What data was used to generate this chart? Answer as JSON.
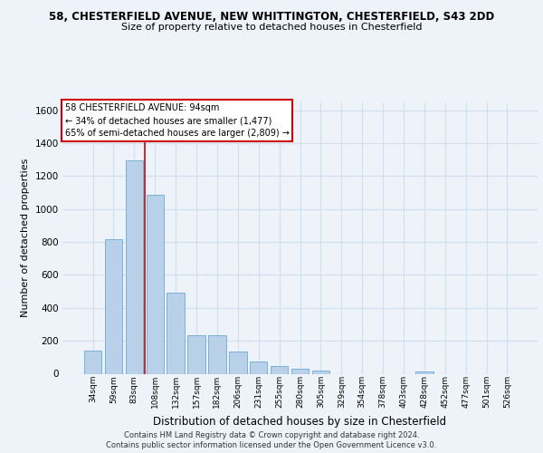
{
  "title_line1": "58, CHESTERFIELD AVENUE, NEW WHITTINGTON, CHESTERFIELD, S43 2DD",
  "title_line2": "Size of property relative to detached houses in Chesterfield",
  "xlabel": "Distribution of detached houses by size in Chesterfield",
  "ylabel": "Number of detached properties",
  "categories": [
    "34sqm",
    "59sqm",
    "83sqm",
    "108sqm",
    "132sqm",
    "157sqm",
    "182sqm",
    "206sqm",
    "231sqm",
    "255sqm",
    "280sqm",
    "305sqm",
    "329sqm",
    "354sqm",
    "378sqm",
    "403sqm",
    "428sqm",
    "452sqm",
    "477sqm",
    "501sqm",
    "526sqm"
  ],
  "values": [
    140,
    815,
    1295,
    1085,
    490,
    235,
    235,
    135,
    75,
    45,
    28,
    18,
    0,
    0,
    0,
    0,
    12,
    0,
    0,
    0,
    0
  ],
  "bar_color": "#b8d0e8",
  "bar_edge_color": "#6aaad4",
  "grid_color": "#d0dff0",
  "vline_x": 2.5,
  "vline_color": "#cc0000",
  "annotation_text": "58 CHESTERFIELD AVENUE: 94sqm\n← 34% of detached houses are smaller (1,477)\n65% of semi-detached houses are larger (2,809) →",
  "annotation_box_color": "white",
  "annotation_box_edge": "#cc0000",
  "ylim": [
    0,
    1650
  ],
  "yticks": [
    0,
    200,
    400,
    600,
    800,
    1000,
    1200,
    1400,
    1600
  ],
  "footer1": "Contains HM Land Registry data © Crown copyright and database right 2024.",
  "footer2": "Contains public sector information licensed under the Open Government Licence v3.0.",
  "bg_color": "#eef3fa"
}
